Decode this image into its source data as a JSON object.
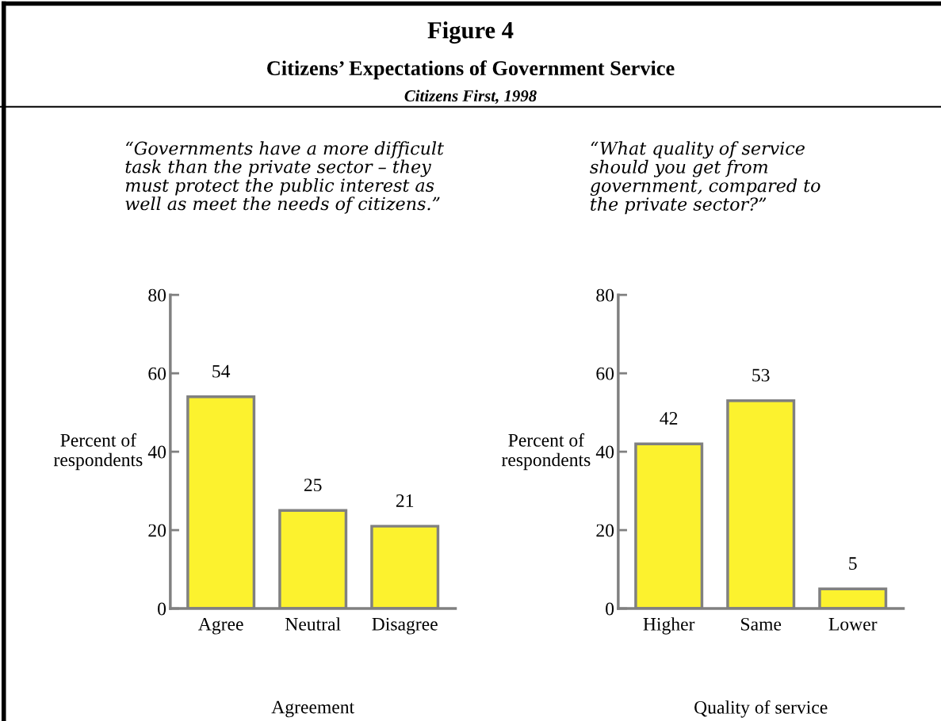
{
  "chart_data": [
    {
      "type": "bar",
      "title": "“Governments have a more difficult\ntask than the private sector – they\nmust protect the public interest as\nwell as meet the needs of citizens.”",
      "xlabel": "Agreement",
      "ylabel": "Percent of\nrespondents",
      "categories": [
        "Agree",
        "Neutral",
        "Disagree"
      ],
      "values": [
        54,
        25,
        21
      ],
      "color": "#fcf22e",
      "ylim": [
        0,
        80
      ],
      "yticks": [
        0,
        20,
        40,
        60,
        80
      ],
      "data_labels": true,
      "grid": false,
      "legend": false,
      "annotations": [
        "Figure 4",
        "Citizens’ Expectations of Government Service",
        "Citizens First, 1998"
      ]
    },
    {
      "type": "bar",
      "title": "“What quality of service\nshould you get from\ngovernment, compared to\nthe private sector?”",
      "xlabel": "Quality of service",
      "ylabel": "Percent of\nrespondents",
      "categories": [
        "Higher",
        "Same",
        "Lower"
      ],
      "values": [
        42,
        53,
        5
      ],
      "color": "#fcf22e",
      "ylim": [
        0,
        80
      ],
      "yticks": [
        0,
        20,
        40,
        60,
        80
      ],
      "data_labels": true,
      "grid": false,
      "legend": false
    }
  ]
}
